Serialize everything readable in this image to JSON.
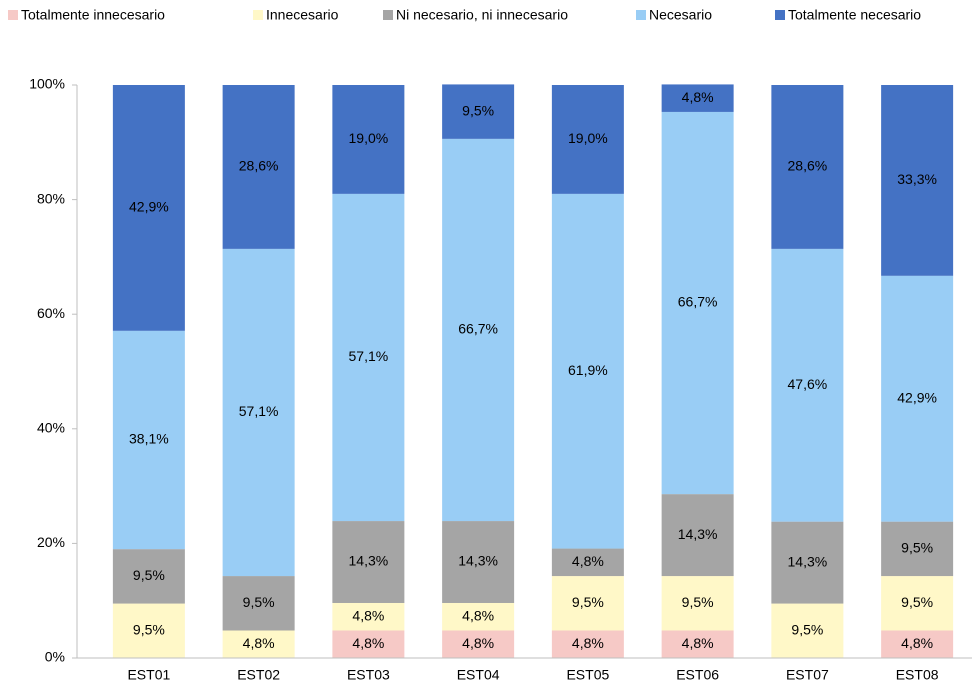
{
  "chart_data": {
    "type": "stacked_bar",
    "categories": [
      "EST01",
      "EST02",
      "EST03",
      "EST04",
      "EST05",
      "EST06",
      "EST07",
      "EST08"
    ],
    "series": [
      {
        "name": "Totalmente innecesario",
        "color": "#f6c9c6",
        "values": [
          0,
          0,
          4.8,
          4.8,
          4.8,
          4.8,
          0,
          4.8
        ],
        "value_labels": [
          null,
          null,
          "4,8%",
          "4,8%",
          "4,8%",
          "4,8%",
          null,
          "4,8%"
        ]
      },
      {
        "name": "Innecesario",
        "color": "#fff8c8",
        "values": [
          9.5,
          4.8,
          4.8,
          4.8,
          9.5,
          9.5,
          9.5,
          9.5
        ],
        "value_labels": [
          "9,5%",
          "4,8%",
          "4,8%",
          "4,8%",
          "9,5%",
          "9,5%",
          "9,5%",
          "9,5%"
        ]
      },
      {
        "name": "Ni necesario, ni innecesario",
        "color": "#a5a5a5",
        "values": [
          9.5,
          9.5,
          14.3,
          14.3,
          4.8,
          14.3,
          14.3,
          9.5
        ],
        "value_labels": [
          "9,5%",
          "9,5%",
          "14,3%",
          "14,3%",
          "4,8%",
          "14,3%",
          "14,3%",
          "9,5%"
        ]
      },
      {
        "name": "Necesario",
        "color": "#99cdf5",
        "values": [
          38.1,
          57.1,
          57.1,
          66.7,
          61.9,
          66.7,
          47.6,
          42.9
        ],
        "value_labels": [
          "38,1%",
          "57,1%",
          "57,1%",
          "66,7%",
          "61,9%",
          "66,7%",
          "47,6%",
          "42,9%"
        ]
      },
      {
        "name": "Totalmente necesario",
        "color": "#4472c4",
        "values": [
          42.9,
          28.6,
          19.0,
          9.5,
          19.0,
          4.8,
          28.6,
          33.3
        ],
        "value_labels": [
          "42,9%",
          "28,6%",
          "19,0%",
          "9,5%",
          "19,0%",
          "4,8%",
          "28,6%",
          "33,3%"
        ]
      }
    ],
    "ylim": [
      0,
      100
    ],
    "yticks": [
      {
        "value": 0,
        "label": "0%"
      },
      {
        "value": 20,
        "label": "20%"
      },
      {
        "value": 40,
        "label": "40%"
      },
      {
        "value": 60,
        "label": "60%"
      },
      {
        "value": 80,
        "label": "80%"
      },
      {
        "value": 100,
        "label": "100%"
      }
    ],
    "legend": "top"
  }
}
